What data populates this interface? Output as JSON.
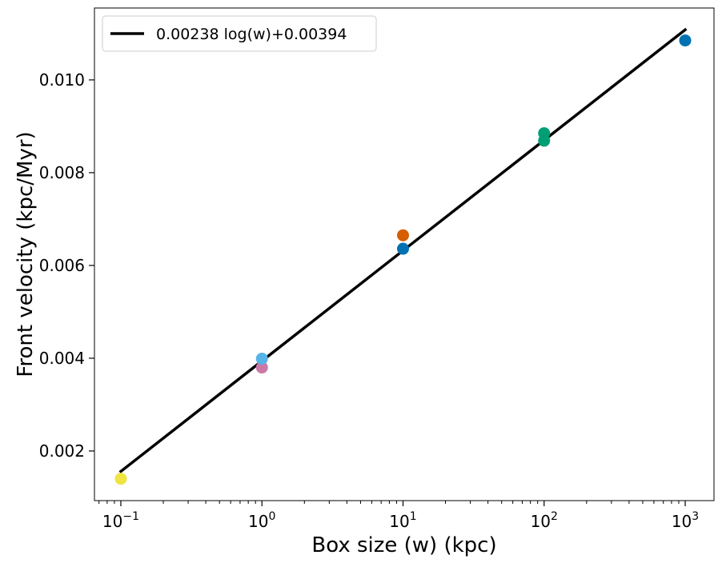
{
  "chart_data": {
    "type": "scatter",
    "xlabel": "Box size (w) (kpc)",
    "ylabel": "Front velocity (kpc/Myr)",
    "xscale": "log",
    "xlim": [
      0.065,
      1600
    ],
    "ylim": [
      0.00093,
      0.01155
    ],
    "grid": false,
    "legend_position": "top-left",
    "x_ticks": [
      {
        "value": 0.1,
        "base": "10",
        "exp": "−1"
      },
      {
        "value": 1,
        "base": "10",
        "exp": "0"
      },
      {
        "value": 10,
        "base": "10",
        "exp": "1"
      },
      {
        "value": 100,
        "base": "10",
        "exp": "2"
      },
      {
        "value": 1000,
        "base": "10",
        "exp": "3"
      }
    ],
    "y_ticks": [
      {
        "value": 0.002,
        "label": "0.002"
      },
      {
        "value": 0.004,
        "label": "0.004"
      },
      {
        "value": 0.006,
        "label": "0.006"
      },
      {
        "value": 0.008,
        "label": "0.008"
      },
      {
        "value": 0.01,
        "label": "0.010"
      }
    ],
    "fit_line": {
      "label": "0.00238 log(w)+0.00394",
      "slope": 0.00238,
      "intercept": 0.00394,
      "x_range": [
        0.1,
        1000
      ],
      "color": "#000000"
    },
    "points": [
      {
        "x": 0.1,
        "y": 0.0014,
        "color": "#f0e442"
      },
      {
        "x": 1,
        "y": 0.0038,
        "color": "#cc79a7"
      },
      {
        "x": 1,
        "y": 0.00399,
        "color": "#56b4e9"
      },
      {
        "x": 10,
        "y": 0.00665,
        "color": "#d55e00"
      },
      {
        "x": 10,
        "y": 0.00636,
        "color": "#0072b2"
      },
      {
        "x": 100,
        "y": 0.00885,
        "color": "#009e73"
      },
      {
        "x": 100,
        "y": 0.00869,
        "color": "#009e73"
      },
      {
        "x": 1000,
        "y": 0.01085,
        "color": "#0072b2"
      }
    ]
  }
}
